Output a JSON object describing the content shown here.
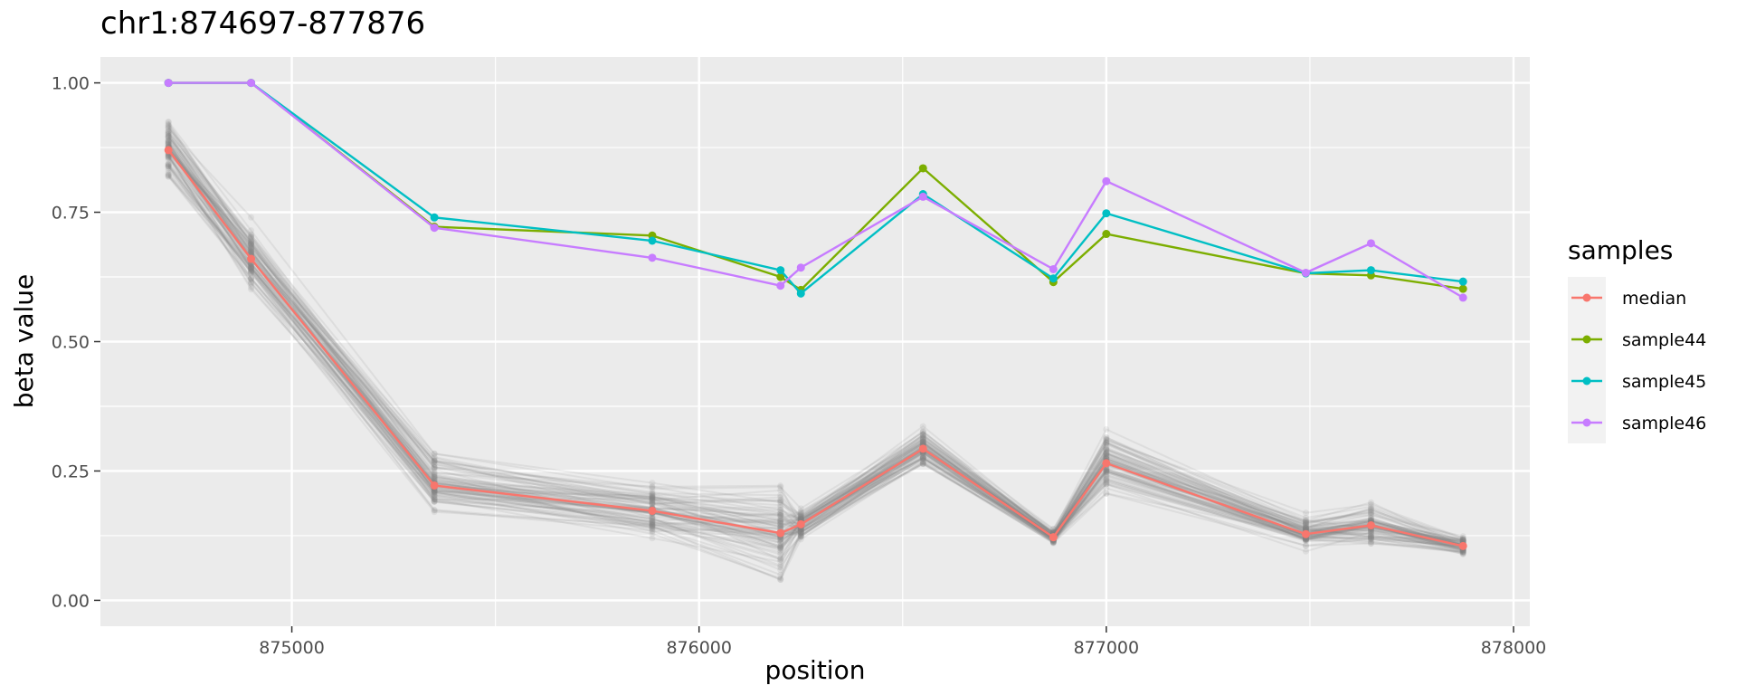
{
  "chart_data": {
    "type": "line",
    "title": "chr1:874697-877876",
    "xlabel": "position",
    "ylabel": "beta value",
    "xlim": [
      874530,
      878040
    ],
    "ylim": [
      -0.05,
      1.05
    ],
    "x_ticks": [
      875000,
      876000,
      877000,
      878000
    ],
    "x_tick_labels": [
      "875000",
      "876000",
      "877000",
      "878000"
    ],
    "y_ticks": [
      0,
      0.25,
      0.5,
      0.75,
      1.0
    ],
    "y_tick_labels": [
      "0.00",
      "0.25",
      "0.50",
      "0.75",
      "1.00"
    ],
    "grid": true,
    "legend_title": "samples",
    "legend_position": "right",
    "x": [
      874697,
      874900,
      875350,
      875885,
      876200,
      876250,
      876550,
      876870,
      877000,
      877490,
      877650,
      877876
    ],
    "series": [
      {
        "name": "sample44",
        "color": "#7CAE00",
        "values": [
          1.0,
          1.0,
          0.722,
          0.705,
          0.625,
          0.6,
          0.835,
          0.615,
          0.708,
          0.632,
          0.628,
          0.602
        ]
      },
      {
        "name": "sample45",
        "color": "#00BFC4",
        "values": [
          1.0,
          1.0,
          0.74,
          0.695,
          0.638,
          0.593,
          0.785,
          0.622,
          0.748,
          0.632,
          0.638,
          0.616
        ]
      },
      {
        "name": "sample46",
        "color": "#C77CFF",
        "values": [
          1.0,
          1.0,
          0.72,
          0.662,
          0.608,
          0.643,
          0.78,
          0.64,
          0.81,
          0.633,
          0.69,
          0.585
        ]
      },
      {
        "name": "median",
        "color": "#F8766D",
        "values": [
          0.87,
          0.66,
          0.222,
          0.173,
          0.13,
          0.147,
          0.293,
          0.122,
          0.265,
          0.128,
          0.145,
          0.105
        ]
      }
    ],
    "legend_order": [
      "median",
      "sample44",
      "sample45",
      "sample46"
    ],
    "background_samples": {
      "color": "#808080",
      "count": 80,
      "per_position_range": [
        [
          0.75,
          0.95
        ],
        [
          0.53,
          0.74
        ],
        [
          0.14,
          0.34
        ],
        [
          0.12,
          0.29
        ],
        [
          0.04,
          0.33
        ],
        [
          0.1,
          0.2
        ],
        [
          0.22,
          0.34
        ],
        [
          0.09,
          0.14
        ],
        [
          0.18,
          0.37
        ],
        [
          0.09,
          0.19
        ],
        [
          0.11,
          0.26
        ],
        [
          0.08,
          0.14
        ]
      ]
    }
  }
}
